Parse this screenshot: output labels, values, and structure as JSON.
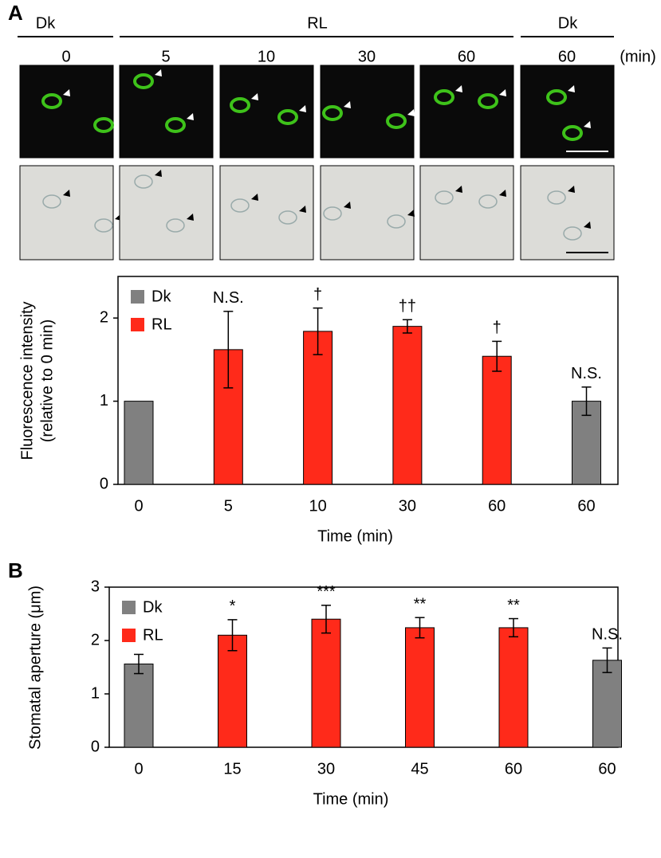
{
  "panel_labels": [
    "A",
    "B"
  ],
  "image_header": {
    "groups": [
      "Dk",
      "RL",
      "Dk"
    ],
    "times": [
      "0",
      "5",
      "10",
      "30",
      "60",
      "60"
    ],
    "unit": "(min)"
  },
  "chart_data": [
    {
      "type": "bar",
      "ylabel": [
        "Fluorescence intensity",
        "(relative to 0 min)"
      ],
      "xlabel": "Time (min)",
      "categories": [
        "0",
        "5",
        "10",
        "30",
        "60",
        "60"
      ],
      "series": [
        {
          "name": "Dk",
          "color": "#808080",
          "values": [
            1,
            null,
            null,
            null,
            null,
            1.0
          ],
          "errors": [
            null,
            null,
            null,
            null,
            null,
            0.17
          ]
        },
        {
          "name": "RL",
          "color": "#ff2a1a",
          "values": [
            null,
            1.62,
            1.84,
            1.9,
            1.54,
            null
          ],
          "errors": [
            null,
            0.46,
            0.28,
            0.08,
            0.18,
            null
          ]
        }
      ],
      "annotations": [
        null,
        "N.S.",
        "†",
        "††",
        "†",
        "N.S."
      ],
      "ylim": [
        0,
        2.5
      ],
      "yticks": [
        0,
        1,
        2
      ],
      "legend": "top-left"
    },
    {
      "type": "bar",
      "ylabel": [
        "Stomatal aperture (μm)"
      ],
      "xlabel": "Time (min)",
      "categories": [
        "0",
        "15",
        "30",
        "45",
        "60",
        "60"
      ],
      "series": [
        {
          "name": "Dk",
          "color": "#808080",
          "values": [
            1.56,
            null,
            null,
            null,
            null,
            1.63
          ],
          "errors": [
            0.18,
            null,
            null,
            null,
            null,
            0.23
          ]
        },
        {
          "name": "RL",
          "color": "#ff2a1a",
          "values": [
            null,
            2.1,
            2.4,
            2.24,
            2.24,
            null
          ],
          "errors": [
            null,
            0.29,
            0.26,
            0.19,
            0.17,
            null
          ]
        }
      ],
      "annotations": [
        null,
        "*",
        "***",
        "**",
        "**",
        "N.S."
      ],
      "ylim": [
        0,
        3
      ],
      "yticks": [
        0,
        1,
        2,
        3
      ],
      "legend": "top-left"
    }
  ]
}
